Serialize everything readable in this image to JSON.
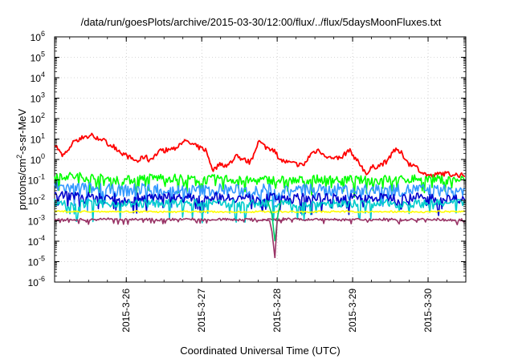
{
  "chart_data": {
    "type": "line",
    "title": "/data/run/goesPlots/archive/2015-03-30/12:00/flux/../flux/5daysMoonFluxes.txt",
    "xlabel": "Coordinated Universal Time (UTC)",
    "ylabel": {
      "prefix": "protons/cm",
      "superscript": "2",
      "suffix": "-s-sr-MeV"
    },
    "yscale": "log",
    "ylim": [
      1e-06,
      1000000.0
    ],
    "xlim": [
      0,
      5.45
    ],
    "x_units": "days after 2015-03-25 00:00 UTC (derived from tick marks)",
    "grid": true,
    "legend": "none",
    "y_ticks": [
      {
        "base": "10",
        "exp": "-6",
        "value": -6
      },
      {
        "base": "10",
        "exp": "-5",
        "value": -5
      },
      {
        "base": "10",
        "exp": "-4",
        "value": -4
      },
      {
        "base": "10",
        "exp": "-3",
        "value": -3
      },
      {
        "base": "10",
        "exp": "-2",
        "value": -2
      },
      {
        "base": "10",
        "exp": "-1",
        "value": -1
      },
      {
        "base": "10",
        "exp": "0",
        "value": 0
      },
      {
        "base": "10",
        "exp": "1",
        "value": 1
      },
      {
        "base": "10",
        "exp": "2",
        "value": 2
      },
      {
        "base": "10",
        "exp": "3",
        "value": 3
      },
      {
        "base": "10",
        "exp": "4",
        "value": 4
      },
      {
        "base": "10",
        "exp": "5",
        "value": 5
      },
      {
        "base": "10",
        "exp": "6",
        "value": 6
      }
    ],
    "x_ticks": [
      {
        "label": "2015-3-26",
        "x": 0.95
      },
      {
        "label": "2015-3-27",
        "x": 1.95
      },
      {
        "label": "2015-3-28",
        "x": 2.95
      },
      {
        "label": "2015-3-29",
        "x": 3.95
      },
      {
        "label": "2015-3-30",
        "x": 4.95
      }
    ],
    "series": [
      {
        "color": "#ff0000",
        "x": [
          0.0,
          0.1,
          0.2,
          0.25,
          0.3,
          0.4,
          0.45,
          0.5,
          0.55,
          0.6,
          0.7,
          0.8,
          0.9,
          1.0,
          1.1,
          1.2,
          1.25,
          1.3,
          1.4,
          1.5,
          1.6,
          1.7,
          1.8,
          1.9,
          2.0,
          2.1,
          2.2,
          2.3,
          2.4,
          2.5,
          2.6,
          2.7,
          2.8,
          2.9,
          3.0,
          3.1,
          3.2,
          3.3,
          3.4,
          3.5,
          3.6,
          3.7,
          3.8,
          3.9,
          4.0,
          4.1,
          4.15,
          4.2,
          4.3,
          4.4,
          4.5,
          4.6,
          4.7,
          4.8,
          4.9,
          5.0,
          5.1,
          5.2,
          5.3,
          5.45
        ],
        "y": [
          6,
          1.5,
          3,
          10,
          7,
          15,
          12,
          18,
          10,
          12,
          6,
          4,
          2,
          1.2,
          0.8,
          1.5,
          0.9,
          1.3,
          2.5,
          3,
          3.5,
          8,
          6,
          4,
          3,
          0.3,
          0.6,
          0.5,
          1.5,
          1,
          0.7,
          8,
          4,
          3,
          0.9,
          0.7,
          0.6,
          0.5,
          2,
          3,
          1.5,
          1,
          1.2,
          3,
          1,
          0.3,
          0.2,
          0.4,
          0.5,
          0.8,
          3,
          2,
          0.6,
          0.4,
          0.2,
          0.15,
          0.2,
          0.2,
          0.18,
          0.16
        ]
      },
      {
        "color": "#00ff00",
        "x": [
          0.0,
          0.2,
          0.4,
          0.6,
          0.8,
          1.0,
          1.2,
          1.4,
          1.6,
          1.8,
          2.0,
          2.2,
          2.4,
          2.6,
          2.8,
          3.0,
          3.2,
          3.4,
          3.6,
          3.8,
          4.0,
          4.2,
          4.4,
          4.6,
          4.8,
          5.0,
          5.2,
          5.45
        ],
        "y": [
          0.18,
          0.15,
          0.14,
          0.12,
          0.1,
          0.1,
          0.12,
          0.13,
          0.12,
          0.11,
          0.1,
          0.12,
          0.1,
          0.09,
          0.1,
          0.1,
          0.09,
          0.11,
          0.1,
          0.11,
          0.1,
          0.09,
          0.11,
          0.1,
          0.12,
          0.11,
          0.1,
          0.1
        ]
      },
      {
        "color": "#3399ff",
        "x": [
          0.0,
          0.2,
          0.4,
          0.6,
          0.8,
          1.0,
          1.2,
          1.4,
          1.6,
          1.8,
          2.0,
          2.2,
          2.4,
          2.6,
          2.8,
          3.0,
          3.2,
          3.4,
          3.6,
          3.8,
          4.0,
          4.2,
          4.4,
          4.6,
          4.8,
          5.0,
          5.2,
          5.45
        ],
        "y": [
          0.05,
          0.04,
          0.04,
          0.035,
          0.03,
          0.03,
          0.04,
          0.035,
          0.03,
          0.03,
          0.03,
          0.035,
          0.03,
          0.03,
          0.035,
          0.03,
          0.03,
          0.035,
          0.03,
          0.035,
          0.03,
          0.03,
          0.035,
          0.03,
          0.035,
          0.03,
          0.03,
          0.03
        ]
      },
      {
        "color": "#0000cc",
        "x": [
          0.0,
          0.2,
          0.4,
          0.6,
          0.8,
          1.0,
          1.2,
          1.4,
          1.6,
          1.8,
          2.0,
          2.2,
          2.4,
          2.6,
          2.8,
          3.0,
          3.2,
          3.4,
          3.6,
          3.8,
          4.0,
          4.2,
          4.4,
          4.6,
          4.8,
          5.0,
          5.2,
          5.45
        ],
        "y": [
          0.02,
          0.017,
          0.015,
          0.014,
          0.013,
          0.012,
          0.015,
          0.016,
          0.014,
          0.013,
          0.014,
          0.015,
          0.013,
          0.013,
          0.014,
          0.014,
          0.013,
          0.014,
          0.013,
          0.014,
          0.013,
          0.012,
          0.014,
          0.013,
          0.014,
          0.013,
          0.012,
          0.012
        ]
      },
      {
        "color": "#00cccc",
        "x": [
          0.0,
          0.2,
          0.4,
          0.6,
          0.8,
          1.0,
          1.2,
          1.4,
          1.6,
          1.8,
          2.0,
          2.2,
          2.4,
          2.6,
          2.8,
          3.0,
          3.2,
          3.4,
          3.6,
          3.8,
          4.0,
          4.2,
          4.4,
          4.6,
          4.8,
          5.0,
          5.2,
          5.45
        ],
        "y": [
          0.008,
          0.007,
          0.007,
          0.007,
          0.007,
          0.007,
          0.007,
          0.007,
          0.007,
          0.007,
          0.007,
          0.007,
          0.007,
          0.007,
          0.007,
          0.007,
          0.007,
          0.007,
          0.007,
          0.007,
          0.007,
          0.007,
          0.007,
          0.007,
          0.007,
          0.007,
          0.007,
          0.007
        ]
      },
      {
        "color": "#ffff00",
        "x": [
          0.0,
          0.3,
          0.6,
          0.9,
          1.2,
          1.5,
          1.8,
          2.1,
          2.4,
          2.7,
          3.0,
          3.3,
          3.6,
          3.9,
          4.2,
          4.5,
          4.8,
          5.1,
          5.45
        ],
        "y": [
          0.003,
          0.0028,
          0.0029,
          0.0028,
          0.0028,
          0.0027,
          0.0028,
          0.0028,
          0.0027,
          0.0028,
          0.0028,
          0.0027,
          0.0028,
          0.0028,
          0.0027,
          0.0028,
          0.0027,
          0.0028,
          0.0028
        ]
      },
      {
        "color": "#993366",
        "x": [
          0.0,
          0.2,
          0.4,
          0.6,
          0.8,
          1.0,
          1.2,
          1.4,
          1.6,
          1.8,
          2.0,
          2.2,
          2.4,
          2.6,
          2.8,
          3.0,
          3.2,
          3.4,
          3.6,
          3.8,
          4.0,
          4.2,
          4.4,
          4.6,
          4.8,
          5.0,
          5.2,
          5.45
        ],
        "y": [
          0.0011,
          0.0012,
          0.0011,
          0.0012,
          0.0012,
          0.0011,
          0.0012,
          0.0011,
          0.0012,
          0.0012,
          0.0011,
          0.0012,
          0.0011,
          0.0012,
          0.0011,
          0.0012,
          0.0012,
          0.0011,
          0.0012,
          0.0011,
          0.0012,
          0.0011,
          0.0012,
          0.0011,
          0.0012,
          0.0012,
          0.0011,
          0.0011
        ]
      }
    ],
    "dip": {
      "x": [
        2.75,
        2.85,
        2.88,
        2.92,
        2.95,
        3.05
      ],
      "y": [
        0.0012,
        0.001,
        0.0003,
        1.5e-05,
        0.001,
        0.0011
      ],
      "color": "#993366"
    },
    "dip_spike": {
      "x": [
        2.82,
        2.88,
        2.92,
        2.96,
        3.0
      ],
      "y": [
        0.01,
        0.002,
        0.0001,
        0.002,
        0.01
      ],
      "color": "#00cc66"
    }
  }
}
